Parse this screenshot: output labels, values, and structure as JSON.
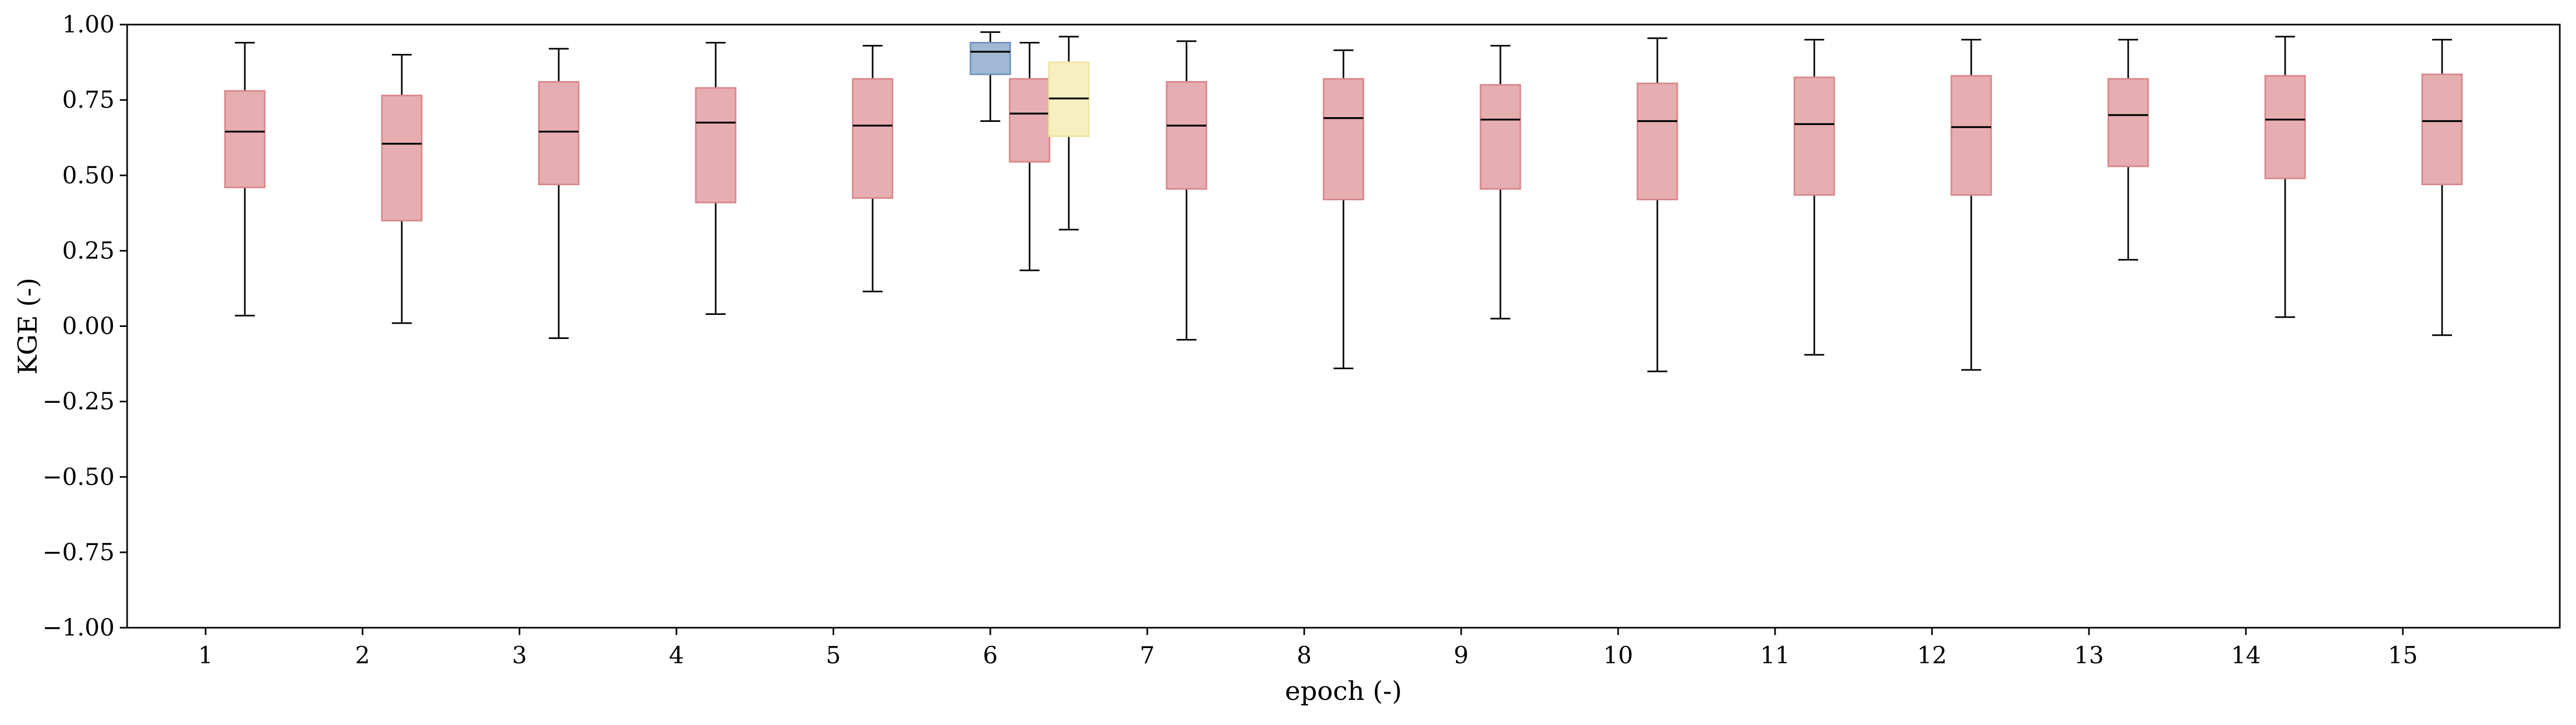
{
  "chart_data": {
    "type": "box",
    "xlabel": "epoch (-)",
    "ylabel": "KGE (-)",
    "ylim": [
      -1.0,
      1.0
    ],
    "xlim": [
      0.5,
      16.0
    ],
    "grid": false,
    "yticks": [
      -1.0,
      -0.75,
      -0.5,
      -0.25,
      0.0,
      0.25,
      0.5,
      0.75,
      1.0
    ],
    "ytick_labels": [
      "−1.00",
      "−0.75",
      "−0.50",
      "−0.25",
      "0.00",
      "0.25",
      "0.50",
      "0.75",
      "1.00"
    ],
    "xticks": [
      1,
      2,
      3,
      4,
      5,
      6,
      7,
      8,
      9,
      10,
      11,
      12,
      13,
      14,
      15
    ],
    "xtick_labels": [
      "1",
      "2",
      "3",
      "4",
      "5",
      "6",
      "7",
      "8",
      "9",
      "10",
      "11",
      "12",
      "13",
      "14",
      "15"
    ],
    "colors": {
      "red": "#e6aeb0",
      "red_edge": "#d9868b",
      "blue": "#a0b8d3",
      "blue_edge": "#6f93bd",
      "yellow": "#f7efc0",
      "yellow_edge": "#efe3a0"
    },
    "boxes": [
      {
        "x": 1.25,
        "min": 0.035,
        "q1": 0.46,
        "median": 0.645,
        "q3": 0.78,
        "max": 0.94,
        "color": "red"
      },
      {
        "x": 2.25,
        "min": 0.01,
        "q1": 0.35,
        "median": 0.605,
        "q3": 0.765,
        "max": 0.9,
        "color": "red"
      },
      {
        "x": 3.25,
        "min": -0.04,
        "q1": 0.47,
        "median": 0.645,
        "q3": 0.81,
        "max": 0.92,
        "color": "red"
      },
      {
        "x": 4.25,
        "min": 0.04,
        "q1": 0.41,
        "median": 0.675,
        "q3": 0.79,
        "max": 0.94,
        "color": "red"
      },
      {
        "x": 5.25,
        "min": 0.115,
        "q1": 0.425,
        "median": 0.665,
        "q3": 0.82,
        "max": 0.93,
        "color": "red"
      },
      {
        "x": 6.0,
        "min": 0.68,
        "q1": 0.835,
        "median": 0.91,
        "q3": 0.94,
        "max": 0.975,
        "color": "blue"
      },
      {
        "x": 6.25,
        "min": 0.185,
        "q1": 0.545,
        "median": 0.705,
        "q3": 0.82,
        "max": 0.94,
        "color": "red"
      },
      {
        "x": 6.5,
        "min": 0.32,
        "q1": 0.63,
        "median": 0.755,
        "q3": 0.875,
        "max": 0.96,
        "color": "yellow"
      },
      {
        "x": 7.25,
        "min": -0.045,
        "q1": 0.455,
        "median": 0.665,
        "q3": 0.81,
        "max": 0.945,
        "color": "red"
      },
      {
        "x": 8.25,
        "min": -0.14,
        "q1": 0.42,
        "median": 0.69,
        "q3": 0.82,
        "max": 0.915,
        "color": "red"
      },
      {
        "x": 9.25,
        "min": 0.025,
        "q1": 0.455,
        "median": 0.685,
        "q3": 0.8,
        "max": 0.93,
        "color": "red"
      },
      {
        "x": 10.25,
        "min": -0.15,
        "q1": 0.42,
        "median": 0.68,
        "q3": 0.805,
        "max": 0.955,
        "color": "red"
      },
      {
        "x": 11.25,
        "min": -0.095,
        "q1": 0.435,
        "median": 0.67,
        "q3": 0.825,
        "max": 0.95,
        "color": "red"
      },
      {
        "x": 12.25,
        "min": -0.145,
        "q1": 0.435,
        "median": 0.66,
        "q3": 0.83,
        "max": 0.95,
        "color": "red"
      },
      {
        "x": 13.25,
        "min": 0.22,
        "q1": 0.53,
        "median": 0.7,
        "q3": 0.82,
        "max": 0.95,
        "color": "red"
      },
      {
        "x": 14.25,
        "min": 0.03,
        "q1": 0.49,
        "median": 0.685,
        "q3": 0.83,
        "max": 0.96,
        "color": "red"
      },
      {
        "x": 15.25,
        "min": -0.03,
        "q1": 0.47,
        "median": 0.68,
        "q3": 0.835,
        "max": 0.95,
        "color": "red"
      }
    ]
  }
}
